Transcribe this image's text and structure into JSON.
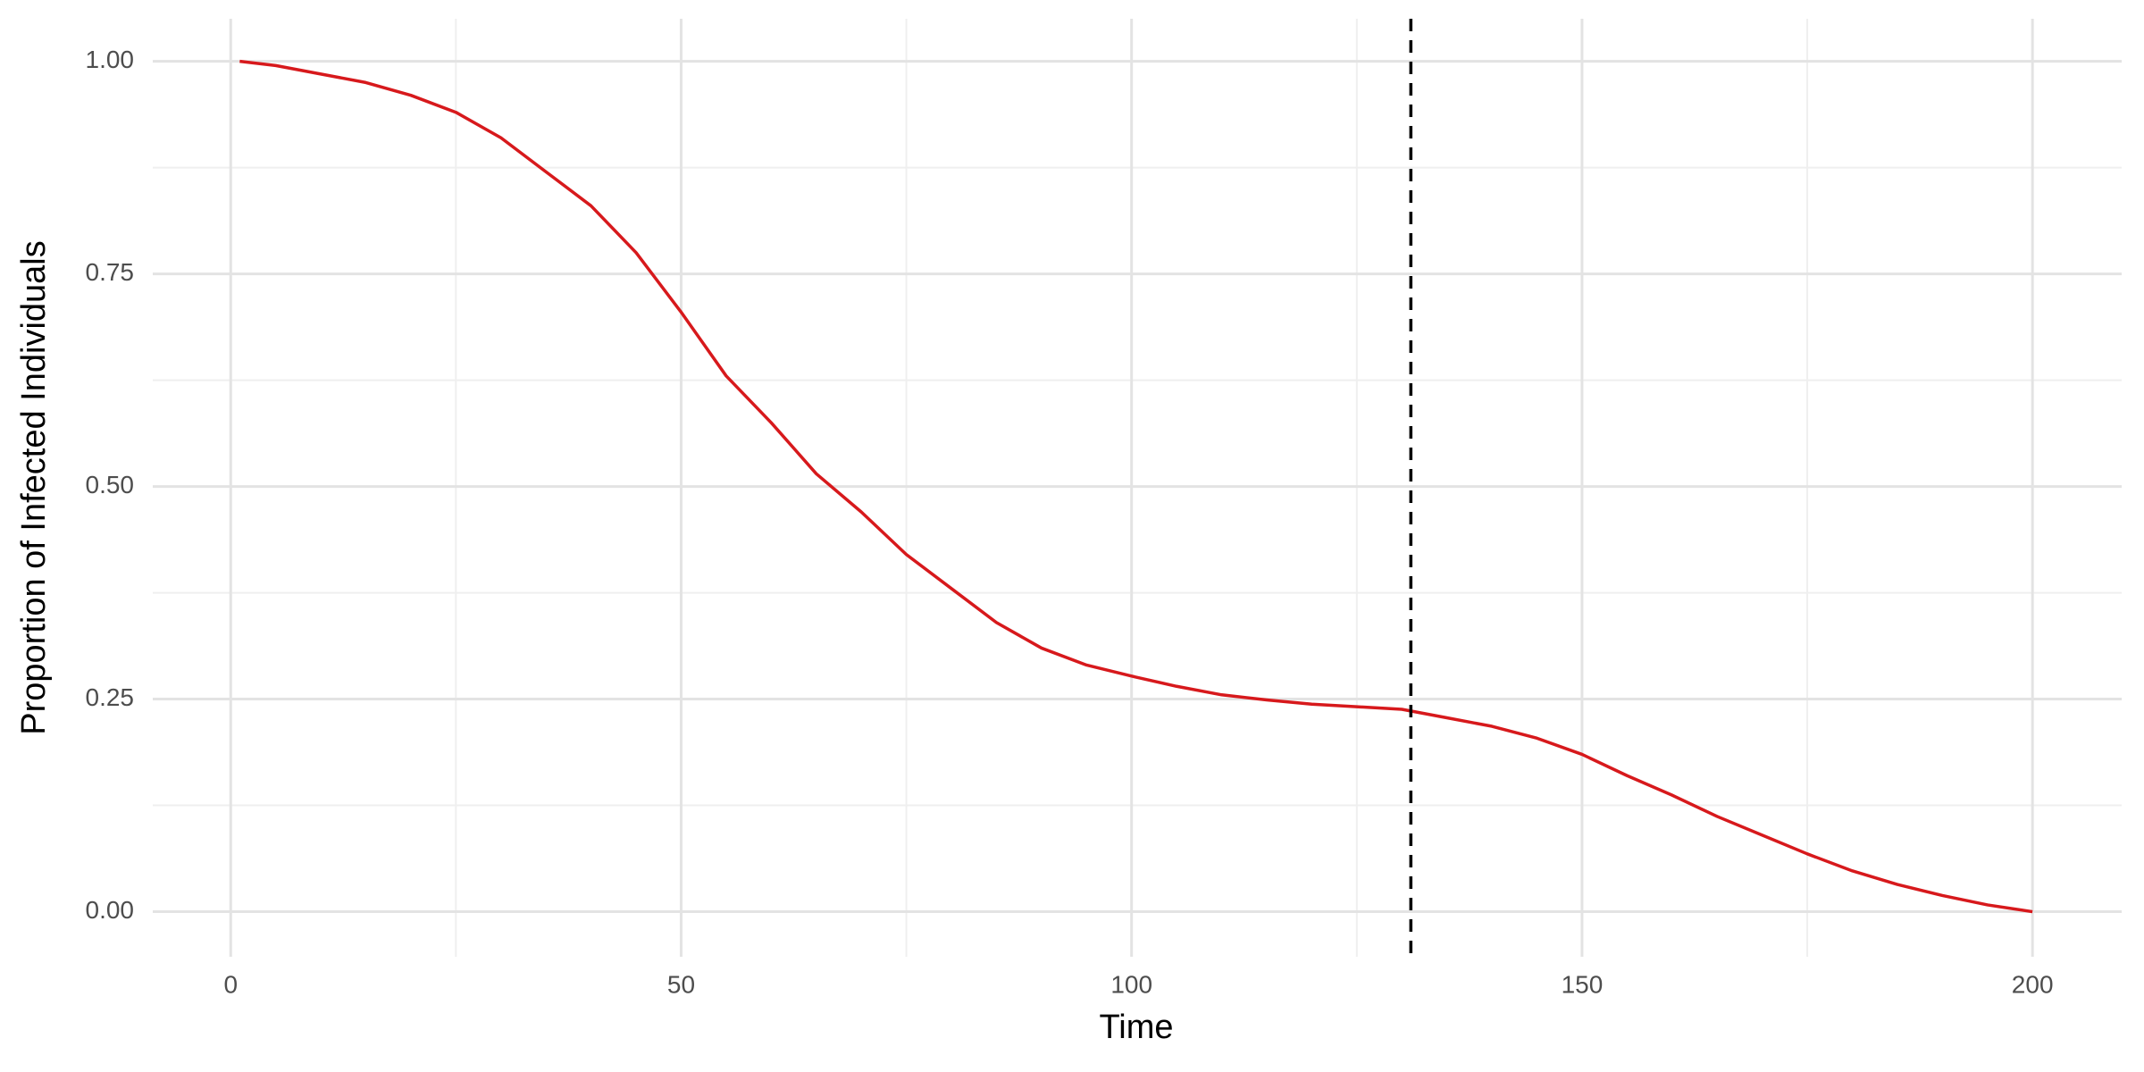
{
  "chart_data": {
    "type": "line",
    "x_label": "Time",
    "y_label": "Proportion of Infected Individuals",
    "x": [
      1,
      5,
      10,
      15,
      20,
      25,
      30,
      35,
      40,
      45,
      50,
      55,
      60,
      65,
      70,
      75,
      80,
      85,
      90,
      95,
      100,
      105,
      110,
      115,
      120,
      125,
      130,
      135,
      140,
      145,
      150,
      155,
      160,
      165,
      170,
      175,
      180,
      185,
      190,
      195,
      200
    ],
    "values": [
      1.0,
      0.995,
      0.985,
      0.975,
      0.96,
      0.94,
      0.91,
      0.87,
      0.83,
      0.775,
      0.705,
      0.63,
      0.575,
      0.515,
      0.47,
      0.42,
      0.38,
      0.34,
      0.31,
      0.29,
      0.277,
      0.265,
      0.255,
      0.249,
      0.244,
      0.241,
      0.238,
      0.228,
      0.218,
      0.204,
      0.185,
      0.16,
      0.137,
      0.112,
      0.09,
      0.068,
      0.048,
      0.032,
      0.019,
      0.008,
      0.0
    ],
    "color": "#d7191c",
    "vline": 131,
    "vline_color": "#000000",
    "xlim": [
      -8.65,
      209.9
    ],
    "ylim": [
      -0.053,
      1.05
    ],
    "xticks": [
      0,
      50,
      100,
      150,
      200
    ],
    "yticks": [
      {
        "value": 0,
        "label": "0.00"
      },
      {
        "value": 0.25,
        "label": "0.25"
      },
      {
        "value": 0.5,
        "label": "0.50"
      },
      {
        "value": 0.75,
        "label": "0.75"
      },
      {
        "value": 1,
        "label": "1.00"
      }
    ],
    "x_minor_ticks": [
      25,
      75,
      125,
      175
    ],
    "y_minor_ticks": [
      0.125,
      0.375,
      0.625,
      0.875
    ],
    "grid": true
  }
}
